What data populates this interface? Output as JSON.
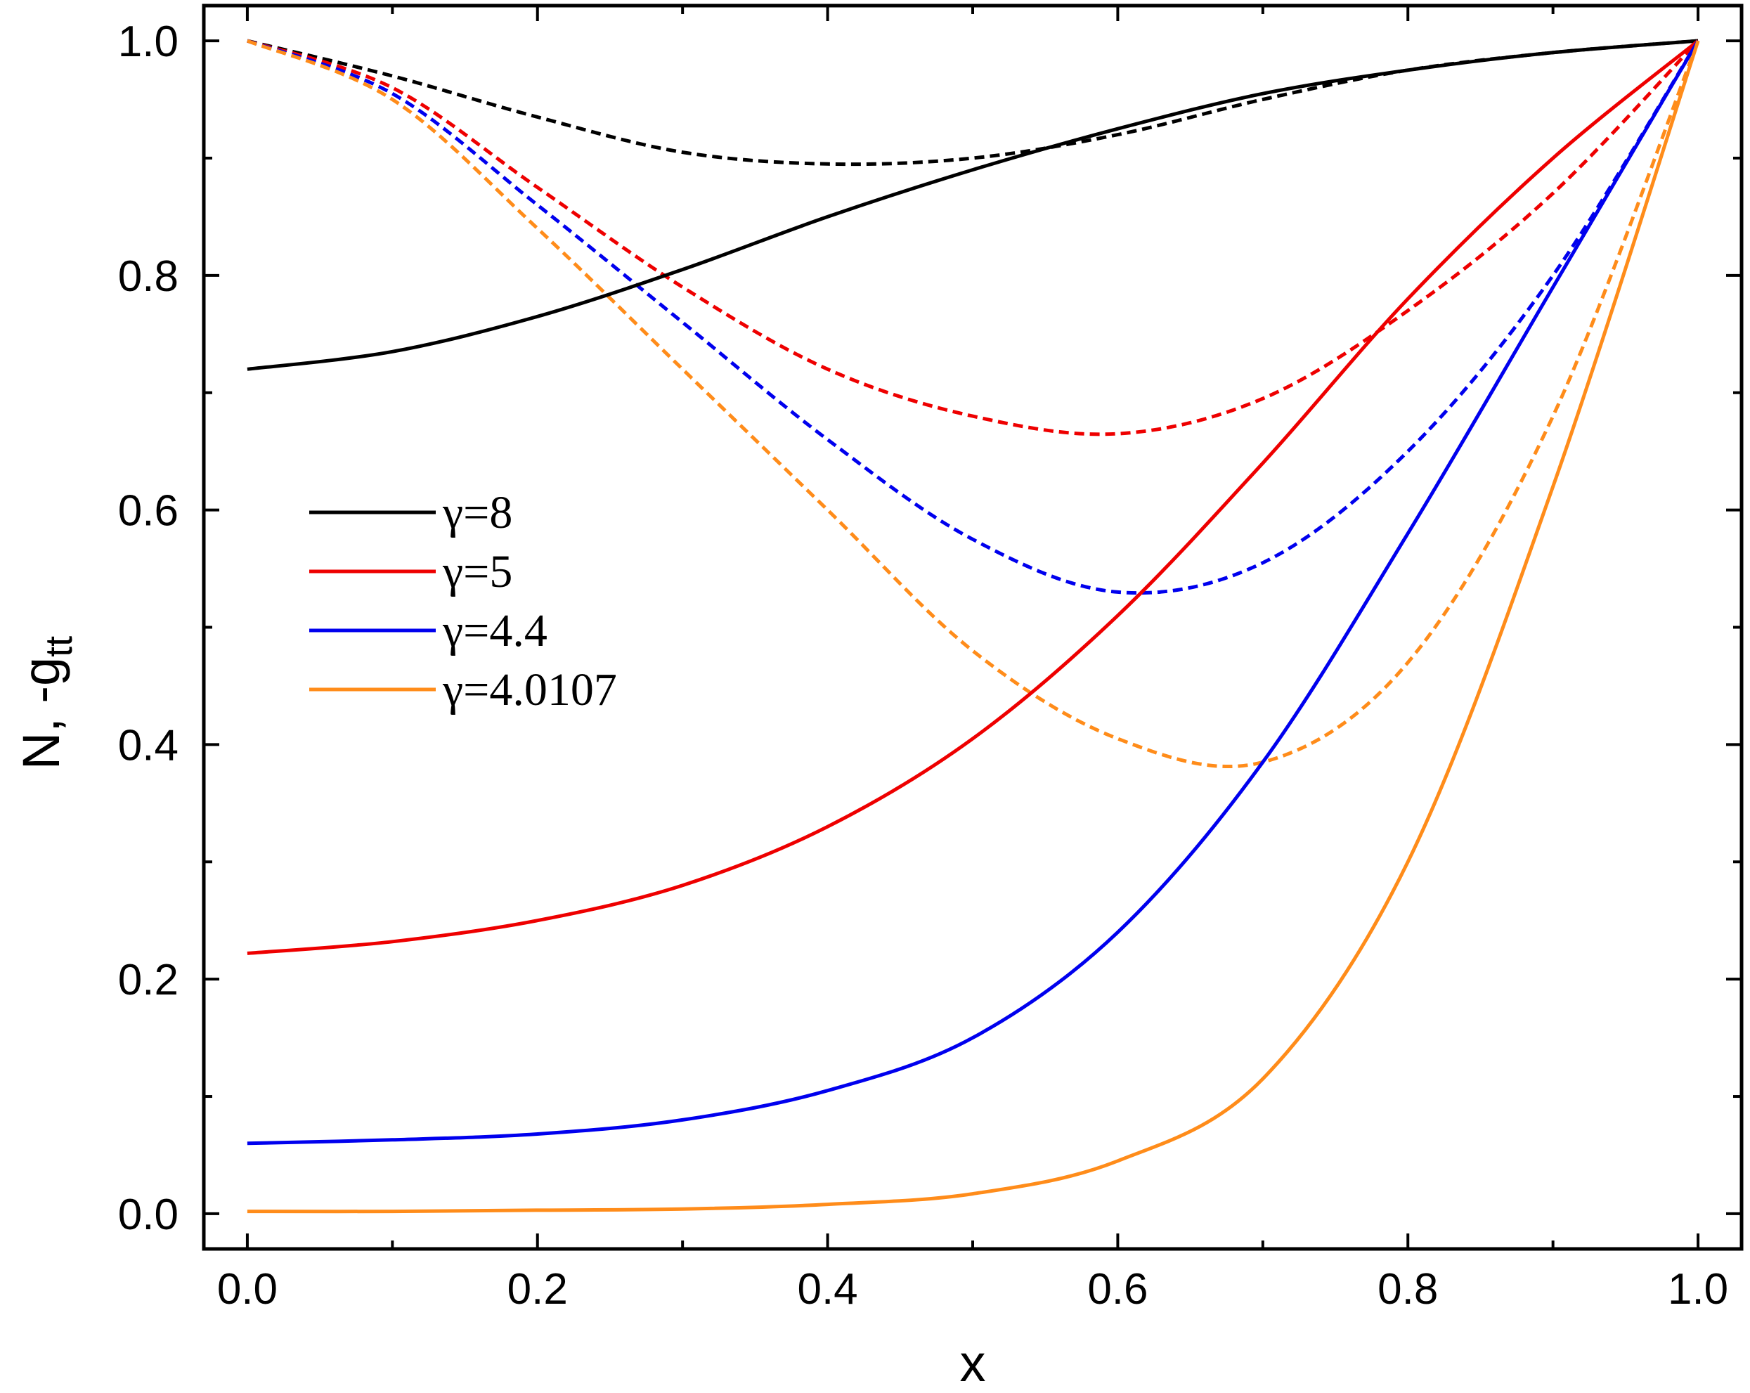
{
  "chart_data": {
    "type": "line",
    "title": "",
    "xlabel": "x",
    "ylabel": {
      "main": "N, -g",
      "subscript": "tt"
    },
    "xlim": [
      -0.03,
      1.03
    ],
    "ylim": [
      -0.03,
      1.03
    ],
    "xticks": [
      0.0,
      0.2,
      0.4,
      0.6,
      0.8,
      1.0
    ],
    "xtick_labels": [
      "0.0",
      "0.2",
      "0.4",
      "0.6",
      "0.8",
      "1.0"
    ],
    "yticks": [
      0.0,
      0.2,
      0.4,
      0.6,
      0.8,
      1.0
    ],
    "ytick_labels": [
      "0.0",
      "0.2",
      "0.4",
      "0.6",
      "0.8",
      "1.0"
    ],
    "grid": false,
    "legend_position": "center-left",
    "x": [
      0.0,
      0.1,
      0.2,
      0.3,
      0.4,
      0.5,
      0.6,
      0.7,
      0.8,
      0.9,
      1.0
    ],
    "series": [
      {
        "name": "γ=8",
        "color": "#000000",
        "solid_label": "N",
        "solid": [
          0.72,
          0.735,
          0.765,
          0.805,
          0.85,
          0.89,
          0.925,
          0.955,
          0.975,
          0.99,
          1.0
        ],
        "dashed_label": "-g_tt",
        "dashed": [
          1.0,
          0.97,
          0.935,
          0.905,
          0.895,
          0.9,
          0.92,
          0.95,
          0.975,
          0.99,
          1.0
        ]
      },
      {
        "name": "γ=5",
        "color": "#ee0000",
        "solid_label": "N",
        "solid": [
          0.222,
          0.232,
          0.25,
          0.28,
          0.33,
          0.405,
          0.51,
          0.64,
          0.78,
          0.9,
          1.0
        ],
        "dashed_label": "-g_tt",
        "dashed": [
          1.0,
          0.96,
          0.875,
          0.79,
          0.72,
          0.68,
          0.665,
          0.695,
          0.77,
          0.87,
          1.0
        ]
      },
      {
        "name": "γ=4.4",
        "color": "#0000ee",
        "solid_label": "N",
        "solid": [
          0.06,
          0.063,
          0.068,
          0.08,
          0.105,
          0.15,
          0.24,
          0.385,
          0.58,
          0.79,
          1.0
        ],
        "dashed_label": "-g_tt",
        "dashed": [
          1.0,
          0.955,
          0.86,
          0.76,
          0.66,
          0.575,
          0.53,
          0.555,
          0.65,
          0.8,
          1.0
        ]
      },
      {
        "name": "γ=4.0107",
        "color": "#ff8c1a",
        "solid_label": "N",
        "solid": [
          0.002,
          0.002,
          0.003,
          0.004,
          0.008,
          0.017,
          0.045,
          0.115,
          0.3,
          0.62,
          1.0
        ],
        "dashed_label": "-g_tt",
        "dashed": [
          1.0,
          0.95,
          0.84,
          0.72,
          0.6,
          0.48,
          0.405,
          0.385,
          0.47,
          0.68,
          1.0
        ]
      }
    ]
  }
}
